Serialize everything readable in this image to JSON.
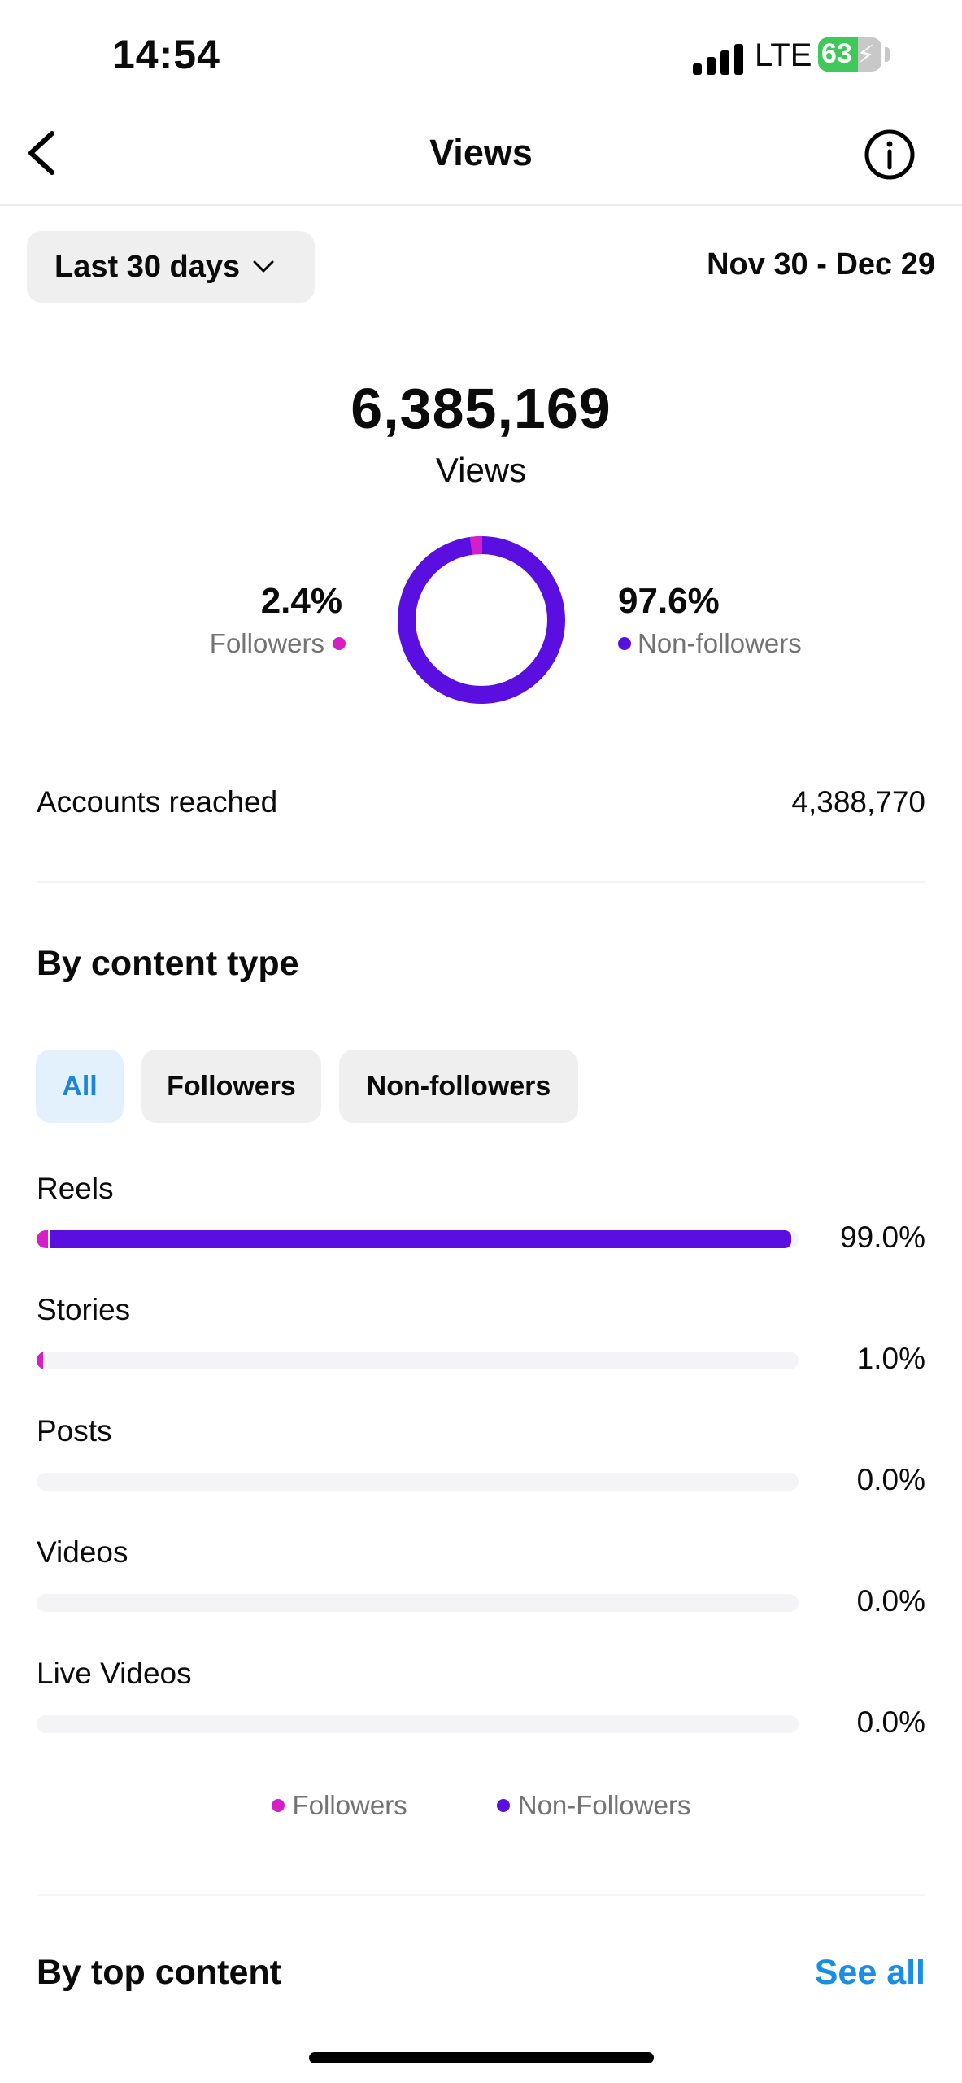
{
  "status_bar": {
    "time": "14:54",
    "network": "LTE",
    "battery": "63",
    "battery_level": 0.63
  },
  "header": {
    "title": "Views",
    "back_icon": "chevron-left-icon",
    "info_icon": "info-circle-icon"
  },
  "date_filter": {
    "selected": "Last 30 days",
    "range": "Nov 30 - Dec 29"
  },
  "summary": {
    "total": "6,385,169",
    "label": "Views",
    "followers_pct": "2.4%",
    "followers_label": "Followers",
    "non_followers_pct": "97.6%",
    "non_followers_label": "Non-followers",
    "followers_fraction": 0.024
  },
  "reach": {
    "label": "Accounts reached",
    "value": "4,388,770"
  },
  "content_type": {
    "title": "By content type",
    "filters": [
      "All",
      "Followers",
      "Non-followers"
    ],
    "active_filter": "All",
    "rows": [
      {
        "label": "Reels",
        "pct": "99.0%",
        "value": 0.99,
        "followers_share": 0.015
      },
      {
        "label": "Stories",
        "pct": "1.0%",
        "value": 0.01,
        "followers_share": 0.5
      },
      {
        "label": "Posts",
        "pct": "0.0%",
        "value": 0.0,
        "followers_share": 0
      },
      {
        "label": "Videos",
        "pct": "0.0%",
        "value": 0.0,
        "followers_share": 0
      },
      {
        "label": "Live Videos",
        "pct": "0.0%",
        "value": 0.0,
        "followers_share": 0
      }
    ],
    "legend": [
      "Followers",
      "Non-Followers"
    ]
  },
  "top_content": {
    "title": "By top content",
    "see_all": "See all"
  },
  "colors": {
    "followers": "#d61ec8",
    "non_followers": "#5a0fe0",
    "link": "#1a8ee6"
  }
}
